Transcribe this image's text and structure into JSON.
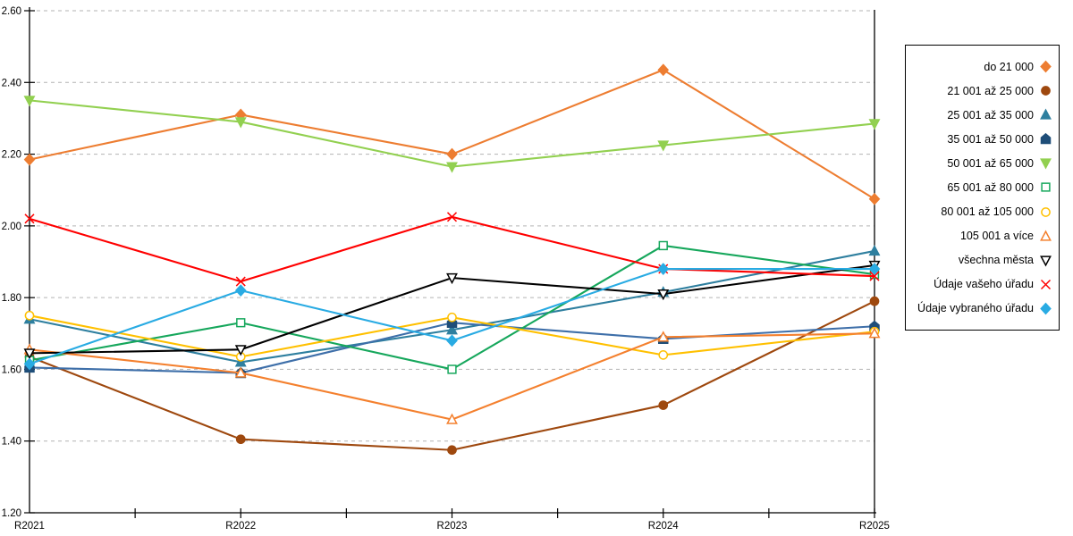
{
  "chart_data": {
    "type": "line",
    "title": "",
    "xlabel": "",
    "ylabel": "",
    "categories": [
      "R2021",
      "R2022",
      "R2023",
      "R2024",
      "R2025"
    ],
    "ylim": [
      1.2,
      2.6
    ],
    "y_tick_values": [
      2.6,
      2.4,
      2.2,
      2.0,
      1.8,
      1.6,
      1.4,
      1.2
    ],
    "y_tick_labels": [
      "2.60",
      "2.40",
      "2.20",
      "2.00",
      "1.80",
      "1.60",
      "1.40",
      "1.20"
    ],
    "grid": "horizontal-dashed",
    "legend_position": "right",
    "series": [
      {
        "name": "do 21 000",
        "marker": "diamond",
        "fill": "filled",
        "color": "#ED7D31",
        "values": [
          2.185,
          2.31,
          2.2,
          2.435,
          2.075
        ]
      },
      {
        "name": "21 001 až 25 000",
        "marker": "circle",
        "fill": "filled",
        "color": "#9E480E",
        "values": [
          1.635,
          1.405,
          1.375,
          1.5,
          1.79
        ]
      },
      {
        "name": "25 001 až 35 000",
        "marker": "triangle-up",
        "fill": "filled",
        "color": "#2E7F9F",
        "values": [
          1.74,
          1.62,
          1.71,
          1.815,
          1.93
        ]
      },
      {
        "name": "35 001 až 50 000",
        "marker": "pentagon",
        "fill": "filled",
        "color": "#1F4E79",
        "line_color": "#3E6FA9",
        "values": [
          1.605,
          1.59,
          1.73,
          1.685,
          1.72
        ]
      },
      {
        "name": "50 001 až 65 000",
        "marker": "triangle-down",
        "fill": "filled",
        "color": "#92D050",
        "values": [
          2.35,
          2.29,
          2.165,
          2.225,
          2.285
        ]
      },
      {
        "name": "65 001 až 80 000",
        "marker": "square",
        "fill": "open",
        "color": "#16A75C",
        "values": [
          1.625,
          1.73,
          1.6,
          1.945,
          1.865
        ]
      },
      {
        "name": "80 001 až 105 000",
        "marker": "circle",
        "fill": "open",
        "color": "#FFC000",
        "values": [
          1.75,
          1.635,
          1.745,
          1.64,
          1.705
        ]
      },
      {
        "name": "105 001 a více",
        "marker": "triangle-up",
        "fill": "open",
        "color": "#F4802E",
        "values": [
          1.655,
          1.59,
          1.46,
          1.69,
          1.7
        ]
      },
      {
        "name": "všechna města",
        "marker": "triangle-down",
        "fill": "open",
        "color": "#000000",
        "values": [
          1.645,
          1.655,
          1.855,
          1.81,
          1.89
        ]
      },
      {
        "name": "Údaje vašeho úřadu",
        "marker": "x",
        "fill": "open",
        "color": "#FF0000",
        "values": [
          2.02,
          1.845,
          2.025,
          1.88,
          1.86
        ]
      },
      {
        "name": "Údaje vybraného úřadu",
        "marker": "diamond",
        "fill": "filled",
        "color": "#29ABE3",
        "values": [
          1.615,
          1.82,
          1.68,
          1.88,
          1.88
        ]
      }
    ]
  },
  "colors": {
    "axis": "#000000",
    "grid": "#b3b3b3",
    "background": "#ffffff"
  }
}
